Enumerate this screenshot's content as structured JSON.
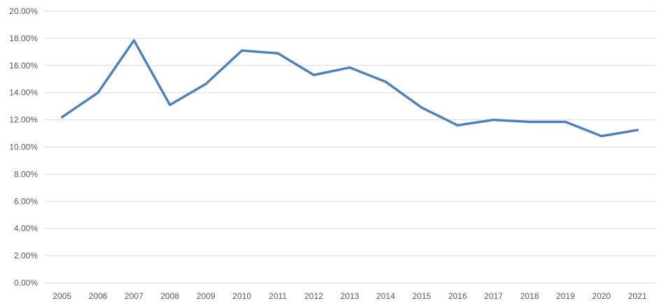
{
  "chart_data": {
    "type": "line",
    "title": "",
    "xlabel": "",
    "ylabel": "",
    "categories": [
      "2005",
      "2006",
      "2007",
      "2008",
      "2009",
      "2010",
      "2011",
      "2012",
      "2013",
      "2014",
      "2015",
      "2016",
      "2017",
      "2018",
      "2019",
      "2020",
      "2021"
    ],
    "series": [
      {
        "color": "#4f81bd",
        "values": [
          12.2,
          14.0,
          17.85,
          13.1,
          14.65,
          17.1,
          16.9,
          15.3,
          15.85,
          14.8,
          12.9,
          11.6,
          12.0,
          11.85,
          11.85,
          10.8,
          11.25
        ]
      }
    ],
    "ylim": [
      0,
      20
    ],
    "ytick_step": 2,
    "ytick_labels": [
      "0.00%",
      "2.00%",
      "4.00%",
      "6.00%",
      "8.00%",
      "10.00%",
      "12.00%",
      "14.00%",
      "16.00%",
      "18.00%",
      "20.00%"
    ],
    "grid": true,
    "legend": "none"
  }
}
